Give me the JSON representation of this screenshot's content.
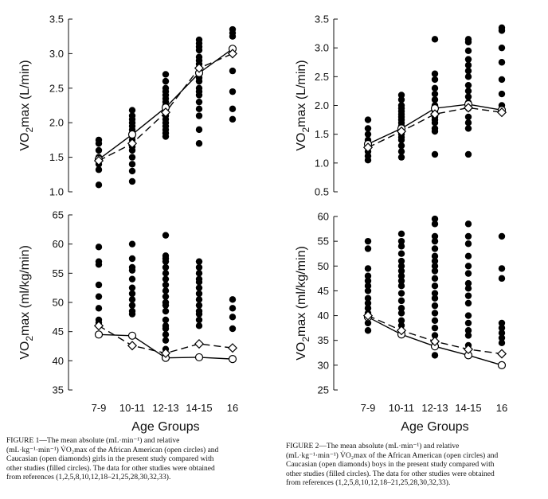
{
  "chart_data": [
    {
      "type": "scatter",
      "panel": "girls-absolute",
      "ylabel_main": "VO",
      "ylabel_sub": "2",
      "ylabel_rest": "max (L/min)",
      "ylim": [
        1.0,
        3.5
      ],
      "yticks": [
        "1.0",
        "1.5",
        "2.0",
        "2.5",
        "3.0",
        "3.5"
      ],
      "categories": [
        "7-9",
        "10-11",
        "12-13",
        "14-15",
        "16"
      ],
      "series": [
        {
          "marker": "open-circle",
          "line": "solid",
          "values": [
            1.47,
            1.83,
            2.22,
            2.72,
            3.07
          ]
        },
        {
          "marker": "open-diamond",
          "line": "dashed",
          "values": [
            1.45,
            1.7,
            2.15,
            2.79,
            3.0
          ]
        }
      ],
      "other_studies": [
        [
          1.75,
          1.7,
          1.6,
          1.5,
          1.4,
          1.32,
          1.1
        ],
        [
          2.18,
          2.1,
          2.05,
          2.0,
          1.95,
          1.9,
          1.85,
          1.8,
          1.75,
          1.65,
          1.6,
          1.5,
          1.4,
          1.3,
          1.15
        ],
        [
          2.7,
          2.6,
          2.5,
          2.45,
          2.4,
          2.35,
          2.3,
          2.25,
          2.2,
          2.15,
          2.1,
          2.05,
          2.0,
          1.95,
          1.9,
          1.85,
          1.8
        ],
        [
          3.2,
          3.15,
          3.1,
          3.05,
          2.95,
          2.9,
          2.85,
          2.8,
          2.7,
          2.65,
          2.6,
          2.5,
          2.45,
          2.4,
          2.3,
          2.2,
          2.1,
          1.9,
          1.7
        ],
        [
          3.35,
          3.3,
          3.25,
          2.75,
          2.45,
          2.2,
          2.05
        ]
      ]
    },
    {
      "type": "scatter",
      "panel": "boys-absolute",
      "ylabel_main": "VO",
      "ylabel_sub": "2",
      "ylabel_rest": "max (L/min)",
      "ylim": [
        0.5,
        3.5
      ],
      "yticks": [
        "0.5",
        "1.0",
        "1.5",
        "2.0",
        "2.5",
        "3.0",
        "3.5"
      ],
      "categories": [
        "7-9",
        "10-11",
        "12-13",
        "14-15",
        "16"
      ],
      "series": [
        {
          "marker": "open-circle",
          "line": "solid",
          "values": [
            1.33,
            1.6,
            1.95,
            2.02,
            1.92
          ]
        },
        {
          "marker": "open-diamond",
          "line": "dashed",
          "values": [
            1.27,
            1.55,
            1.85,
            1.96,
            1.88
          ]
        }
      ],
      "other_studies": [
        [
          1.75,
          1.6,
          1.5,
          1.4,
          1.3,
          1.2,
          1.12,
          1.05
        ],
        [
          2.18,
          2.1,
          2.0,
          1.95,
          1.9,
          1.85,
          1.8,
          1.75,
          1.7,
          1.65,
          1.6,
          1.55,
          1.5,
          1.45,
          1.4,
          1.3,
          1.2,
          1.1
        ],
        [
          3.15,
          2.55,
          2.45,
          2.3,
          2.2,
          2.1,
          2.0,
          1.95,
          1.9,
          1.85,
          1.8,
          1.75,
          1.7,
          1.6,
          1.55,
          1.15
        ],
        [
          3.15,
          3.1,
          2.95,
          2.8,
          2.7,
          2.6,
          2.5,
          2.35,
          2.25,
          2.15,
          2.05,
          1.95,
          1.8,
          1.7,
          1.6,
          1.15
        ],
        [
          3.35,
          3.3,
          3.0,
          2.75,
          2.45,
          2.2,
          2.0
        ]
      ]
    },
    {
      "type": "scatter",
      "panel": "girls-relative",
      "ylabel_main": "VO",
      "ylabel_sub": "2",
      "ylabel_rest": "max (ml/kg/min)",
      "ylim": [
        35,
        65
      ],
      "yticks": [
        "35",
        "40",
        "45",
        "50",
        "55",
        "60",
        "65"
      ],
      "categories": [
        "7-9",
        "10-11",
        "12-13",
        "14-15",
        "16"
      ],
      "series": [
        {
          "marker": "open-circle",
          "line": "solid",
          "values": [
            44.5,
            44.3,
            40.5,
            40.6,
            40.3
          ]
        },
        {
          "marker": "open-diamond",
          "line": "dashed",
          "values": [
            46.0,
            42.6,
            41.3,
            42.9,
            42.2
          ]
        }
      ],
      "other_studies": [
        [
          59.5,
          57.0,
          56.5,
          53.0,
          51.0,
          49.0,
          47.0,
          46.5
        ],
        [
          60.0,
          57.5,
          56.0,
          55.5,
          54.0,
          52.5,
          51.5,
          50.5,
          49.5,
          48.5,
          48.0
        ],
        [
          61.5,
          58.0,
          57.5,
          57.0,
          56.0,
          55.0,
          54.0,
          53.0,
          52.0,
          51.0,
          50.0,
          49.5,
          48.5,
          47.0,
          46.0,
          45.5,
          44.5,
          43.5,
          42.0
        ],
        [
          57.0,
          56.0,
          55.0,
          54.0,
          53.5,
          52.5,
          51.5,
          50.5,
          49.5,
          48.5,
          48.0,
          47.0,
          46.0
        ],
        [
          50.5,
          49.0,
          47.5,
          45.5
        ]
      ]
    },
    {
      "type": "scatter",
      "panel": "boys-relative",
      "ylabel_main": "VO",
      "ylabel_sub": "2",
      "ylabel_rest": "max (ml/kg/min)",
      "ylim": [
        25,
        60
      ],
      "yticks": [
        "25",
        "30",
        "35",
        "40",
        "45",
        "50",
        "55",
        "60"
      ],
      "categories": [
        "7-9",
        "10-11",
        "12-13",
        "14-15",
        "16"
      ],
      "series": [
        {
          "marker": "open-circle",
          "line": "solid",
          "values": [
            39.7,
            36.2,
            33.8,
            32.0,
            30.0
          ]
        },
        {
          "marker": "open-diamond",
          "line": "dashed",
          "values": [
            40.0,
            37.0,
            34.8,
            33.2,
            32.3
          ]
        }
      ],
      "other_studies": [
        [
          55.0,
          53.5,
          49.5,
          48.0,
          47.0,
          46.0,
          45.0,
          43.5,
          42.5,
          41.5,
          40.5,
          38.5,
          37.0
        ],
        [
          56.5,
          55.0,
          54.0,
          52.5,
          51.0,
          50.0,
          49.0,
          48.0,
          47.0,
          46.0,
          44.5,
          43.0,
          41.5,
          40.5,
          39.0,
          38.0
        ],
        [
          59.5,
          58.5,
          56.0,
          55.0,
          53.5,
          52.0,
          51.0,
          50.0,
          49.0,
          47.5,
          46.0,
          44.5,
          43.5,
          42.0,
          40.5,
          39.0,
          37.5,
          36.0,
          34.5,
          32.0
        ],
        [
          58.5,
          56.0,
          54.5,
          52.0,
          50.0,
          48.5,
          46.5,
          45.5,
          44.0,
          42.5,
          40.0,
          38.5,
          37.0,
          36.0,
          34.0
        ],
        [
          56.0,
          49.5,
          47.5,
          38.5,
          37.5,
          36.5,
          35.5,
          34.5
        ]
      ]
    }
  ],
  "xaxis_title": "Age Groups",
  "captions": [
    {
      "lines": [
        "FIGURE 1—The mean absolute (mL·min⁻¹) and relative",
        "(mL·kg⁻¹·min⁻¹) V̇O₂max of the African American (open circles) and",
        "Caucasian (open diamonds) girls in the present study compared with",
        "other studies (filled circles). The data for other studies were obtained",
        "from references (1,2,5,8,10,12,18–21,25,28,30,32,33)."
      ]
    },
    {
      "lines": [
        "FIGURE 2—The mean absolute (mL·min⁻¹) and relative",
        "(mL·kg⁻¹·min⁻¹) V̇O₂max of the African American (open circles) and",
        "Caucasian (open diamonds) boys in the present study compared with",
        "other studies (filled circles). The data for other studies were obtained",
        "from references (1,2,5,8,10,12,18–21,25,28,30,32,33)."
      ]
    }
  ]
}
